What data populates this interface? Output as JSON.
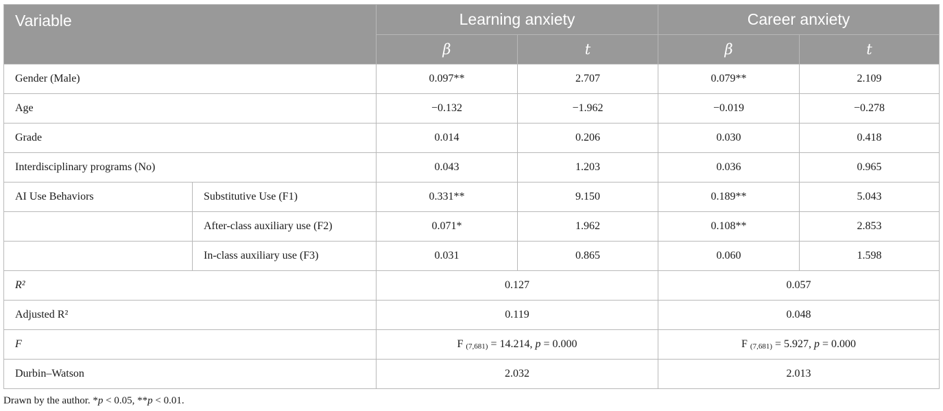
{
  "header": {
    "variable": "Variable",
    "learning": "Learning anxiety",
    "career": "Career anxiety",
    "beta": "β",
    "t": "t"
  },
  "rows": [
    {
      "label": "Gender (Male)",
      "lb": "0.097**",
      "lt": "2.707",
      "cb": "0.079**",
      "ct": "2.109"
    },
    {
      "label": "Age",
      "lb": "−0.132",
      "lt": "−1.962",
      "cb": "−0.019",
      "ct": "−0.278"
    },
    {
      "label": "Grade",
      "lb": "0.014",
      "lt": "0.206",
      "cb": "0.030",
      "ct": "0.418"
    },
    {
      "label": "Interdisciplinary programs (No)",
      "lb": "0.043",
      "lt": "1.203",
      "cb": "0.036",
      "ct": "0.965"
    }
  ],
  "ai": {
    "group": "AI Use Behaviors",
    "rows": [
      {
        "label": "Substitutive Use (F1)",
        "lb": "0.331**",
        "lt": "9.150",
        "cb": "0.189**",
        "ct": "5.043"
      },
      {
        "label": "After-class auxiliary use (F2)",
        "lb": "0.071*",
        "lt": "1.962",
        "cb": "0.108**",
        "ct": "2.853"
      },
      {
        "label": "In-class auxiliary use (F3)",
        "lb": "0.031",
        "lt": "0.865",
        "cb": "0.060",
        "ct": "1.598"
      }
    ]
  },
  "stats": {
    "r2": {
      "label": "R²",
      "learning": "0.127",
      "career": "0.057"
    },
    "adj_r2": {
      "label": "Adjusted R²",
      "learning": "0.119",
      "career": "0.048"
    },
    "f": {
      "label": "F",
      "prefix": "F",
      "subscript": "(7,681)",
      "learning_value": "= 14.214,",
      "career_value": "= 5.927,",
      "p_label": "p",
      "p_value": "= 0.000"
    },
    "dw": {
      "label": "Durbin–Watson",
      "learning": "2.032",
      "career": "2.013"
    }
  },
  "note": {
    "text": "Drawn by the author. *",
    "p": "p",
    "first": " < 0.05, **",
    "second": " < 0.01."
  }
}
